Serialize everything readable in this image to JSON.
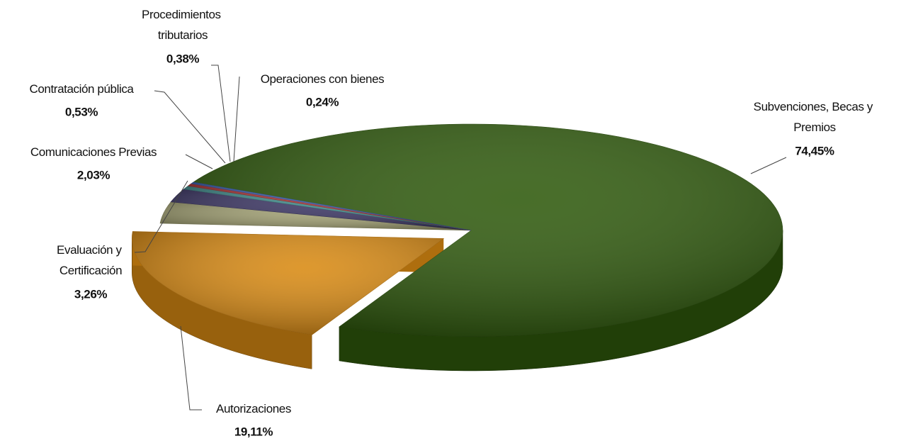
{
  "chart_data": {
    "type": "pie",
    "categories": [
      "Subvenciones, Becas y Premios",
      "Autorizaciones",
      "Evaluación y Certificación",
      "Comunicaciones Previas",
      "Contratación pública",
      "Procedimientos tributarios",
      "Operaciones con bienes"
    ],
    "values": [
      74.45,
      19.11,
      3.26,
      2.03,
      0.53,
      0.38,
      0.24
    ],
    "value_labels": [
      "74,45%",
      "19,11%",
      "3,26%",
      "2,03%",
      "0,53%",
      "0,38%",
      "0,24%"
    ],
    "colors": [
      "#2f5a0c",
      "#d98a12",
      "#a3a274",
      "#3b3564",
      "#3f8a8a",
      "#a83232",
      "#3a5fb0"
    ]
  }
}
